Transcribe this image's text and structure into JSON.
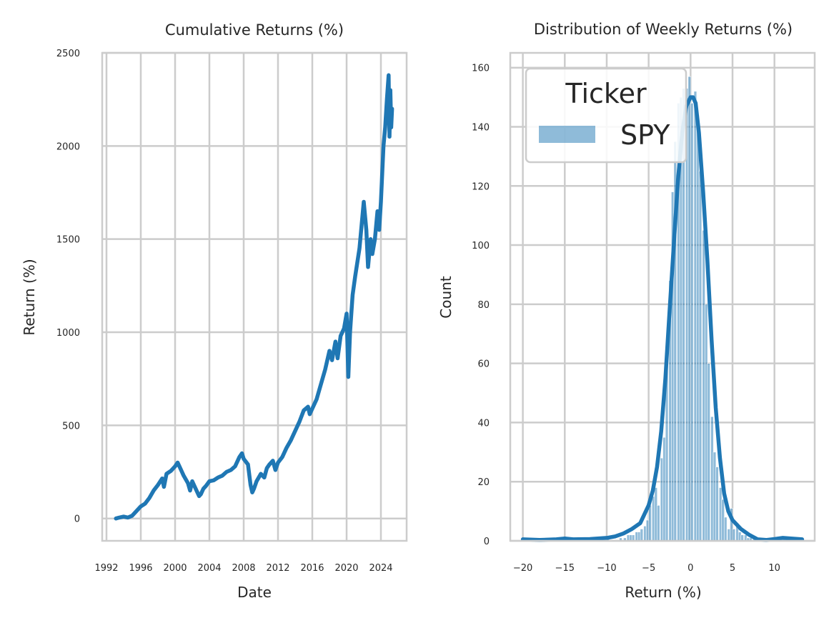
{
  "chart_data": [
    {
      "type": "line",
      "title": "Cumulative Returns (%)",
      "xlabel": "Date",
      "ylabel": "Return (%)",
      "xlim": [
        1991.5,
        2027.0
      ],
      "ylim": [
        -120,
        2500
      ],
      "xticks": [
        1992,
        1996,
        2000,
        2004,
        2008,
        2012,
        2016,
        2020,
        2024
      ],
      "yticks": [
        0,
        500,
        1000,
        1500,
        2000,
        2500
      ],
      "grid": true,
      "color": "#1f77b4",
      "series": [
        {
          "name": "SPY",
          "x": [
            1993.1,
            1993.5,
            1994.0,
            1994.5,
            1995.0,
            1995.5,
            1996.0,
            1996.5,
            1997.0,
            1997.5,
            1998.0,
            1998.5,
            1998.7,
            1999.0,
            1999.5,
            2000.0,
            2000.3,
            2000.7,
            2001.0,
            2001.5,
            2001.75,
            2002.0,
            2002.5,
            2002.8,
            2003.0,
            2003.3,
            2003.6,
            2004.0,
            2004.5,
            2005.0,
            2005.5,
            2006.0,
            2006.5,
            2007.0,
            2007.5,
            2007.8,
            2008.0,
            2008.5,
            2008.8,
            2009.0,
            2009.2,
            2009.5,
            2010.0,
            2010.4,
            2010.7,
            2011.0,
            2011.4,
            2011.7,
            2012.0,
            2012.5,
            2013.0,
            2013.5,
            2014.0,
            2014.5,
            2015.0,
            2015.5,
            2015.7,
            2016.0,
            2016.5,
            2017.0,
            2017.5,
            2018.0,
            2018.3,
            2018.7,
            2018.95,
            2019.3,
            2019.7,
            2020.0,
            2020.2,
            2020.4,
            2020.7,
            2021.0,
            2021.5,
            2022.0,
            2022.3,
            2022.5,
            2022.8,
            2023.0,
            2023.3,
            2023.6,
            2023.8,
            2024.0,
            2024.3,
            2024.5,
            2024.7,
            2024.9,
            2025.0,
            2025.1,
            2025.2,
            2025.3
          ],
          "y": [
            0,
            5,
            10,
            5,
            15,
            40,
            65,
            80,
            110,
            150,
            180,
            215,
            170,
            240,
            255,
            280,
            300,
            260,
            230,
            190,
            150,
            200,
            150,
            120,
            130,
            160,
            175,
            200,
            205,
            220,
            230,
            250,
            260,
            280,
            330,
            350,
            320,
            290,
            180,
            140,
            160,
            200,
            240,
            220,
            270,
            290,
            310,
            260,
            300,
            330,
            380,
            420,
            470,
            520,
            580,
            600,
            560,
            590,
            640,
            720,
            800,
            900,
            850,
            950,
            860,
            980,
            1020,
            1100,
            760,
            1000,
            1200,
            1300,
            1450,
            1700,
            1550,
            1350,
            1500,
            1420,
            1500,
            1650,
            1550,
            1700,
            2000,
            2100,
            2250,
            2380,
            2050,
            2300,
            2100,
            2200
          ]
        }
      ]
    },
    {
      "type": "bar",
      "title": "Distribution of Weekly Returns (%)",
      "xlabel": "Return (%)",
      "ylabel": "Count",
      "xlim": [
        -21.5,
        14.8
      ],
      "ylim": [
        0,
        165
      ],
      "xticks": [
        -20,
        -15,
        -10,
        -5,
        0,
        5,
        10
      ],
      "yticks": [
        0,
        20,
        40,
        60,
        80,
        100,
        120,
        140,
        160
      ],
      "grid": true,
      "legend": {
        "title": "Ticker",
        "entries": [
          "SPY"
        ],
        "placement": "top-left"
      },
      "color": "#1f77b4",
      "bin_width": 0.33,
      "histogram": {
        "bin_left": [
          -20.0,
          -15.0,
          -12.0,
          -10.0,
          -8.5,
          -8.0,
          -7.6,
          -7.3,
          -7.0,
          -6.6,
          -6.3,
          -6.0,
          -5.6,
          -5.3,
          -5.0,
          -4.6,
          -4.3,
          -4.0,
          -3.6,
          -3.3,
          -3.0,
          -2.6,
          -2.3,
          -2.0,
          -1.6,
          -1.3,
          -1.0,
          -0.6,
          -0.3,
          0.0,
          0.4,
          0.7,
          1.0,
          1.4,
          1.7,
          2.0,
          2.4,
          2.7,
          3.0,
          3.4,
          3.7,
          4.0,
          4.4,
          4.7,
          5.0,
          5.4,
          5.7,
          6.0,
          6.4,
          6.7,
          7.0,
          7.4,
          8.0,
          9.0,
          11.0
        ],
        "counts": [
          1,
          1,
          1,
          1,
          1,
          1,
          2,
          2,
          2,
          3,
          3,
          4,
          5,
          7,
          12,
          15,
          18,
          12,
          28,
          35,
          62,
          88,
          118,
          135,
          148,
          150,
          153,
          153,
          157,
          148,
          152,
          144,
          125,
          105,
          80,
          60,
          42,
          30,
          25,
          18,
          14,
          8,
          4,
          11,
          4,
          6,
          3,
          2,
          2,
          1,
          1,
          1,
          1,
          1,
          1
        ]
      },
      "kde": {
        "x": [
          -20,
          -18,
          -16,
          -15,
          -14,
          -12,
          -10,
          -9,
          -8,
          -7,
          -6,
          -5,
          -4.5,
          -4,
          -3.5,
          -3,
          -2.5,
          -2,
          -1.5,
          -1,
          -0.5,
          0,
          0.3,
          0.6,
          1,
          1.5,
          2,
          2.5,
          3,
          3.5,
          4,
          4.5,
          5,
          6,
          7,
          8,
          9,
          10,
          11,
          12,
          13.3
        ],
        "y": [
          0.5,
          0.3,
          0.5,
          0.8,
          0.5,
          0.6,
          1,
          1.5,
          2.5,
          4,
          6,
          12,
          17,
          25,
          37,
          55,
          78,
          100,
          122,
          138,
          147,
          150,
          150,
          148,
          138,
          118,
          95,
          68,
          45,
          28,
          16,
          10,
          7,
          4,
          2,
          0.5,
          0.3,
          0.6,
          1,
          0.8,
          0.5
        ]
      }
    }
  ]
}
